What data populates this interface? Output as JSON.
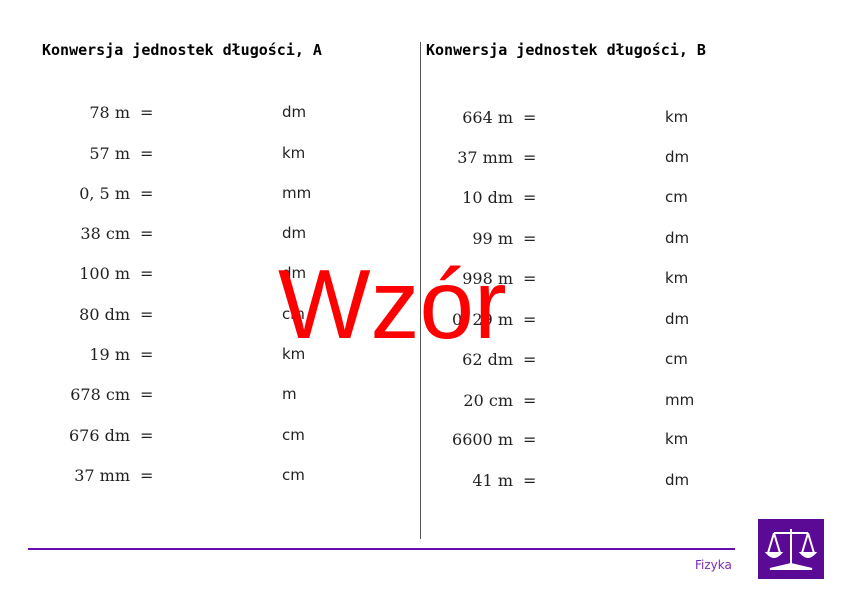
{
  "watermark": "Wzór",
  "footer": {
    "subject": "Fizyka",
    "accent": "#6a0dad"
  },
  "sections": [
    {
      "title": "Konwersja jednostek długości, A",
      "rows": [
        {
          "value": "78 m",
          "unit": "dm"
        },
        {
          "value": "57 m",
          "unit": "km"
        },
        {
          "value": "0, 5 m",
          "unit": "mm"
        },
        {
          "value": "38 cm",
          "unit": "dm"
        },
        {
          "value": "100 m",
          "unit": "dm"
        },
        {
          "value": "80 dm",
          "unit": "cm"
        },
        {
          "value": "19 m",
          "unit": "km"
        },
        {
          "value": "678 cm",
          "unit": "m"
        },
        {
          "value": "676 dm",
          "unit": "cm"
        },
        {
          "value": "37 mm",
          "unit": "cm"
        }
      ]
    },
    {
      "title": "Konwersja jednostek długości, B",
      "rows": [
        {
          "value": "664 m",
          "unit": "km"
        },
        {
          "value": "37 mm",
          "unit": "dm"
        },
        {
          "value": "10 dm",
          "unit": "cm"
        },
        {
          "value": "99 m",
          "unit": "dm"
        },
        {
          "value": "998 m",
          "unit": "km"
        },
        {
          "value": "0, 29 m",
          "unit": "dm"
        },
        {
          "value": "62 dm",
          "unit": "cm"
        },
        {
          "value": "20 cm",
          "unit": "mm"
        },
        {
          "value": "6600 m",
          "unit": "km"
        },
        {
          "value": "41 m",
          "unit": "dm"
        }
      ]
    }
  ],
  "eq": "="
}
